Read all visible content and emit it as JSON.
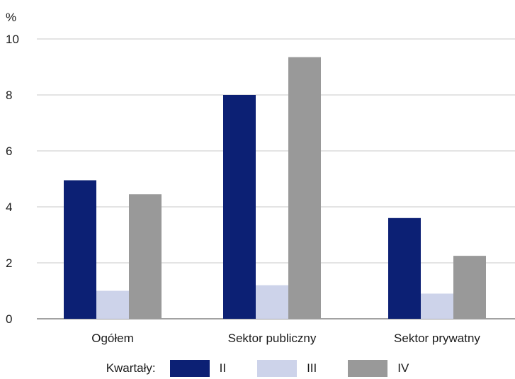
{
  "chart_data": {
    "type": "bar",
    "unit_label": "%",
    "categories": [
      "Ogółem",
      "Sektor publiczny",
      "Sektor prywatny"
    ],
    "series": [
      {
        "name": "II",
        "values": [
          4.95,
          8.0,
          3.6
        ],
        "color": "#0c2074"
      },
      {
        "name": "III",
        "values": [
          1.0,
          1.2,
          0.9
        ],
        "color": "#cdd3ea"
      },
      {
        "name": "IV",
        "values": [
          4.45,
          9.35,
          2.25
        ],
        "color": "#999999"
      }
    ],
    "ylim": [
      0,
      10
    ],
    "yticks": [
      "0",
      "2",
      "4",
      "6",
      "8",
      "10"
    ],
    "grid": true,
    "legend_title": "Kwartały:",
    "legend_placement": "bottom"
  }
}
